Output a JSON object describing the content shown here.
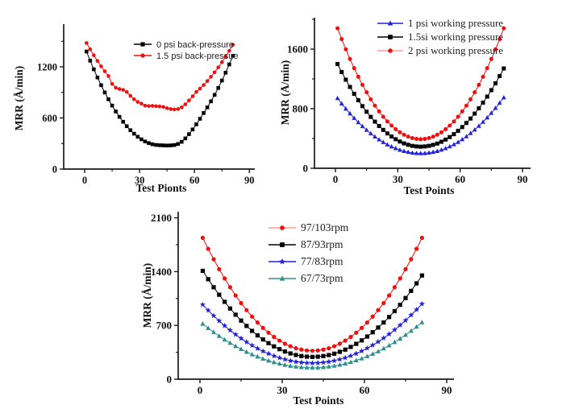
{
  "page": {
    "background": "#ffffff"
  },
  "chart_data": [
    {
      "id": "back_pressure",
      "type": "scatter",
      "title": "",
      "xlabel": "Test Pionts",
      "ylabel": "MRR  (Å/min)",
      "xlim": [
        -11,
        93
      ],
      "ylim": [
        0,
        1710
      ],
      "xticks": [
        0,
        30,
        60,
        90
      ],
      "xminor": [
        15,
        45,
        75
      ],
      "yticks": [
        0,
        600,
        1200
      ],
      "yminor": [
        300,
        900,
        1500
      ],
      "grid": false,
      "legend_position": "top-center-inside",
      "x": [
        1,
        3,
        5,
        7,
        9,
        11,
        13,
        15,
        17,
        19,
        21,
        23,
        25,
        27,
        29,
        31,
        33,
        35,
        37,
        39,
        41,
        43,
        45,
        47,
        49,
        51,
        53,
        55,
        57,
        59,
        61,
        63,
        65,
        67,
        69,
        71,
        73,
        75,
        77,
        79,
        81
      ],
      "series": [
        {
          "name": "0 psi back-pressure",
          "color": "#000000",
          "marker": "square",
          "values": [
            1380,
            1273,
            1171,
            1075,
            984,
            899,
            819,
            745,
            676,
            613,
            555,
            503,
            456,
            415,
            379,
            349,
            324,
            305,
            291,
            283,
            280,
            278,
            276,
            278,
            282,
            295,
            320,
            360,
            410,
            465,
            525,
            590,
            658,
            724,
            795,
            871,
            952,
            1039,
            1131,
            1228,
            1330
          ]
        },
        {
          "name": "1.5 psi back-pressue",
          "color": "#f20c0c",
          "marker": "circle",
          "values": [
            1480,
            1406,
            1336,
            1269,
            1206,
            1148,
            1092,
            1000,
            955,
            940,
            930,
            905,
            860,
            820,
            788,
            768,
            745,
            740,
            742,
            738,
            735,
            730,
            715,
            705,
            700,
            705,
            725,
            760,
            805,
            855,
            905,
            944,
            986,
            1033,
            1083,
            1136,
            1194,
            1255,
            1319,
            1388,
            1460
          ]
        }
      ]
    },
    {
      "id": "working_pressure",
      "type": "scatter",
      "title": "",
      "xlabel": "Test Points",
      "ylabel": "MRR  (Å/min)",
      "xlim": [
        -10,
        94
      ],
      "ylim": [
        0,
        2020
      ],
      "xticks": [
        0,
        30,
        60,
        90
      ],
      "xminor": [
        15,
        45,
        75
      ],
      "yticks": [
        0,
        800,
        1600
      ],
      "yminor": [
        400,
        1200,
        2000
      ],
      "grid": false,
      "legend_position": "top-center-inside",
      "x": [
        1,
        3,
        5,
        7,
        9,
        11,
        13,
        15,
        17,
        19,
        21,
        23,
        25,
        27,
        29,
        31,
        33,
        35,
        37,
        39,
        41,
        43,
        45,
        47,
        49,
        51,
        53,
        55,
        57,
        59,
        61,
        63,
        65,
        67,
        69,
        71,
        73,
        75,
        77,
        79,
        81
      ],
      "series": [
        {
          "name": "1 psi working pressure",
          "color": "#2121dd",
          "marker": "triangle",
          "values": [
            940,
            868,
            799,
            735,
            674,
            616,
            563,
            513,
            466,
            424,
            385,
            350,
            318,
            291,
            267,
            246,
            230,
            217,
            207,
            202,
            200,
            202,
            208,
            217,
            230,
            247,
            268,
            292,
            320,
            352,
            388,
            427,
            470,
            517,
            568,
            622,
            680,
            742,
            808,
            877,
            950
          ]
        },
        {
          "name": "1.5si working pressure",
          "color": "#000000",
          "marker": "square",
          "values": [
            1400,
            1292,
            1189,
            1092,
            1000,
            914,
            834,
            759,
            690,
            626,
            568,
            515,
            468,
            426,
            390,
            359,
            334,
            315,
            301,
            293,
            290,
            293,
            301,
            314,
            332,
            356,
            385,
            419,
            458,
            503,
            553,
            608,
            668,
            734,
            805,
            881,
            962,
            1049,
            1141,
            1238,
            1340
          ]
        },
        {
          "name": "2 psi working pressure",
          "color": "#f20c0c",
          "marker": "circle",
          "legend_line": "#ff9a9a",
          "values": [
            1880,
            1735,
            1597,
            1467,
            1344,
            1228,
            1120,
            1020,
            926,
            841,
            763,
            692,
            628,
            573,
            524,
            483,
            450,
            424,
            405,
            394,
            390,
            394,
            405,
            424,
            450,
            483,
            524,
            573,
            628,
            692,
            763,
            841,
            926,
            1020,
            1120,
            1228,
            1344,
            1467,
            1597,
            1735,
            1880
          ]
        }
      ]
    },
    {
      "id": "rpm",
      "type": "scatter",
      "title": "",
      "xlabel": "Test Points",
      "ylabel": "MRR  (Å/min)",
      "xlim": [
        -8,
        95
      ],
      "ylim": [
        0,
        2180
      ],
      "xticks": [
        0,
        30,
        60,
        90
      ],
      "xminor": [
        15,
        45,
        75
      ],
      "yticks": [
        0,
        700,
        1400,
        2100
      ],
      "yminor": [
        350,
        1050,
        1750
      ],
      "grid": false,
      "legend_position": "top-center-inside",
      "x": [
        1,
        3,
        5,
        7,
        9,
        11,
        13,
        15,
        17,
        19,
        21,
        23,
        25,
        27,
        29,
        31,
        33,
        35,
        37,
        39,
        41,
        43,
        45,
        47,
        49,
        51,
        53,
        55,
        57,
        59,
        61,
        63,
        65,
        67,
        69,
        71,
        73,
        75,
        77,
        79,
        81
      ],
      "series": [
        {
          "name": "97/103rpm",
          "color": "#f20c0c",
          "marker": "circle",
          "legend_line": "#ff9a9a",
          "values": [
            1840,
            1697,
            1561,
            1432,
            1311,
            1197,
            1090,
            991,
            899,
            815,
            738,
            668,
            605,
            550,
            502,
            462,
            429,
            403,
            385,
            374,
            370,
            374,
            385,
            403,
            429,
            462,
            502,
            550,
            605,
            668,
            738,
            815,
            899,
            991,
            1090,
            1197,
            1311,
            1432,
            1561,
            1697,
            1840
          ]
        },
        {
          "name": "87/93rpm",
          "color": "#000000",
          "marker": "square",
          "values": [
            1410,
            1301,
            1197,
            1099,
            1007,
            920,
            839,
            763,
            693,
            629,
            570,
            517,
            469,
            427,
            391,
            360,
            335,
            315,
            301,
            293,
            290,
            293,
            301,
            314,
            332,
            356,
            385,
            420,
            460,
            505,
            555,
            611,
            672,
            738,
            809,
            886,
            968,
            1056,
            1149,
            1247,
            1350
          ]
        },
        {
          "name": "77/83rpm",
          "color": "#2121dd",
          "marker": "star",
          "values": [
            970,
            896,
            826,
            759,
            696,
            638,
            582,
            531,
            484,
            440,
            400,
            364,
            332,
            303,
            278,
            258,
            240,
            227,
            218,
            212,
            210,
            212,
            218,
            227,
            241,
            258,
            279,
            304,
            333,
            366,
            403,
            443,
            487,
            535,
            587,
            643,
            703,
            766,
            834,
            905,
            980
          ]
        },
        {
          "name": "67/73rpm",
          "color": "#2e8f8b",
          "marker": "triangle",
          "values": [
            720,
            664,
            612,
            562,
            515,
            471,
            429,
            391,
            355,
            322,
            293,
            265,
            241,
            220,
            201,
            186,
            173,
            163,
            156,
            151,
            150,
            151,
            156,
            163,
            174,
            187,
            203,
            222,
            244,
            269,
            298,
            329,
            362,
            399,
            439,
            482,
            528,
            576,
            628,
            682,
            740
          ]
        }
      ]
    }
  ]
}
